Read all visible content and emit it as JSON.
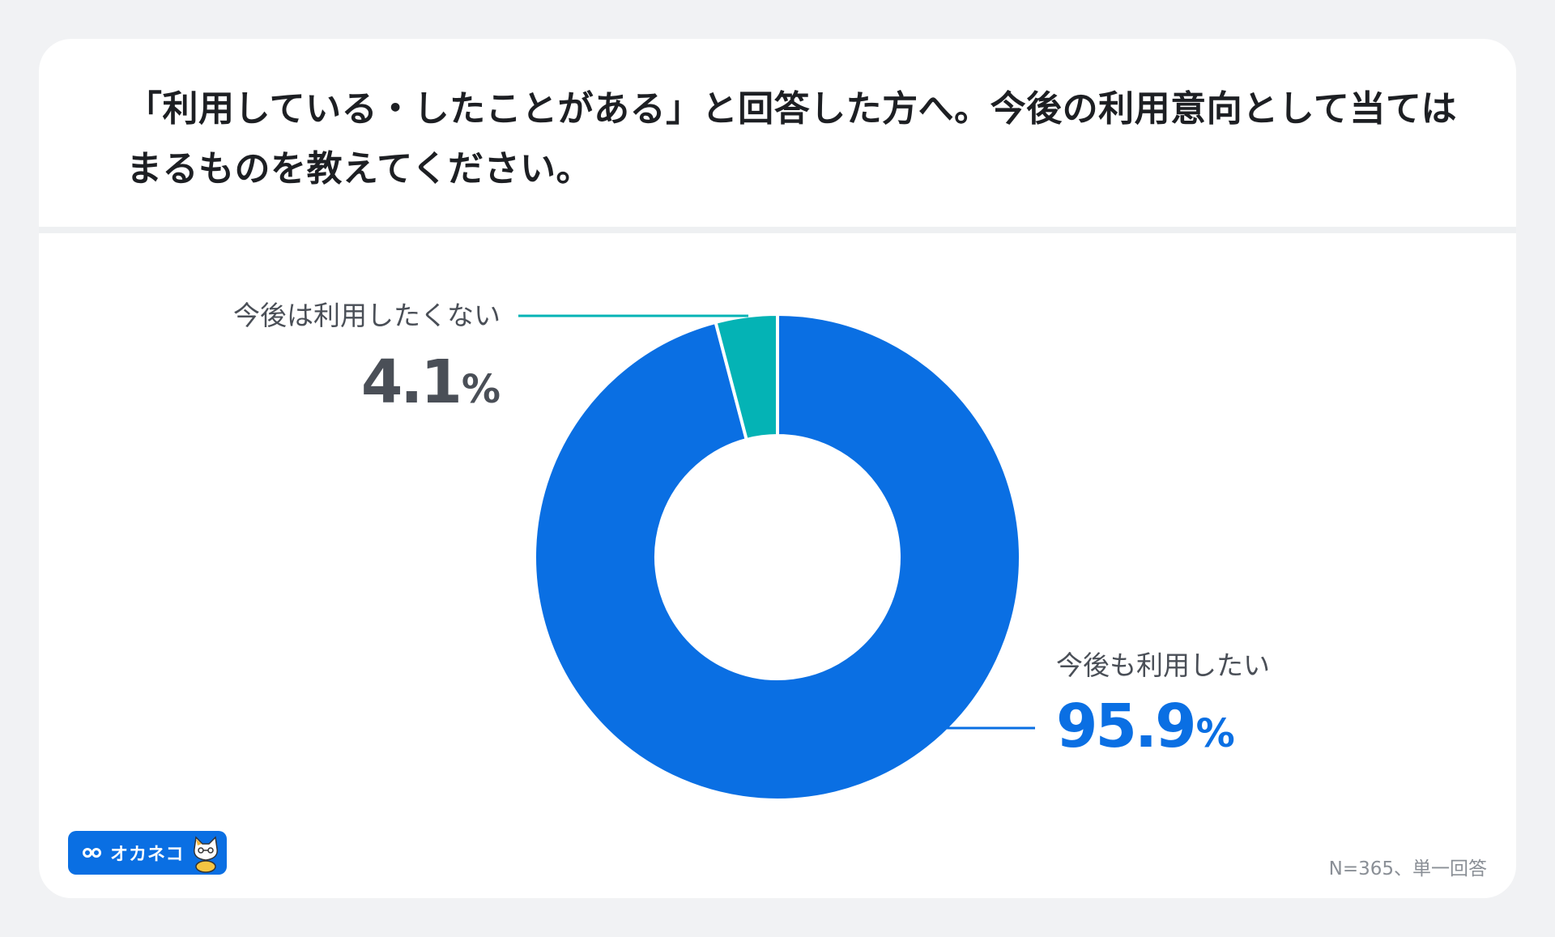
{
  "title": "「利用している・したことがある」と回答した方へ。今後の利用意向として当てはまるものを教えてください。",
  "chart_data": {
    "type": "pie",
    "donut": true,
    "slices": [
      {
        "label": "今後も利用したい",
        "value": 95.9,
        "display": "95.9",
        "unit": "%",
        "color": "#0a6fe3"
      },
      {
        "label": "今後は利用したくない",
        "value": 4.1,
        "display": "4.1",
        "unit": "%",
        "color": "#04b3b5"
      }
    ]
  },
  "colors": {
    "value_dark": "#4a4f57",
    "value_blue": "#0a6fe3",
    "leader_teal": "#04b3b5",
    "leader_blue": "#0a6fe3"
  },
  "logo": {
    "text": "オカネコ",
    "icon": "cat-mascot-icon"
  },
  "footnote": "N=365、単一回答"
}
